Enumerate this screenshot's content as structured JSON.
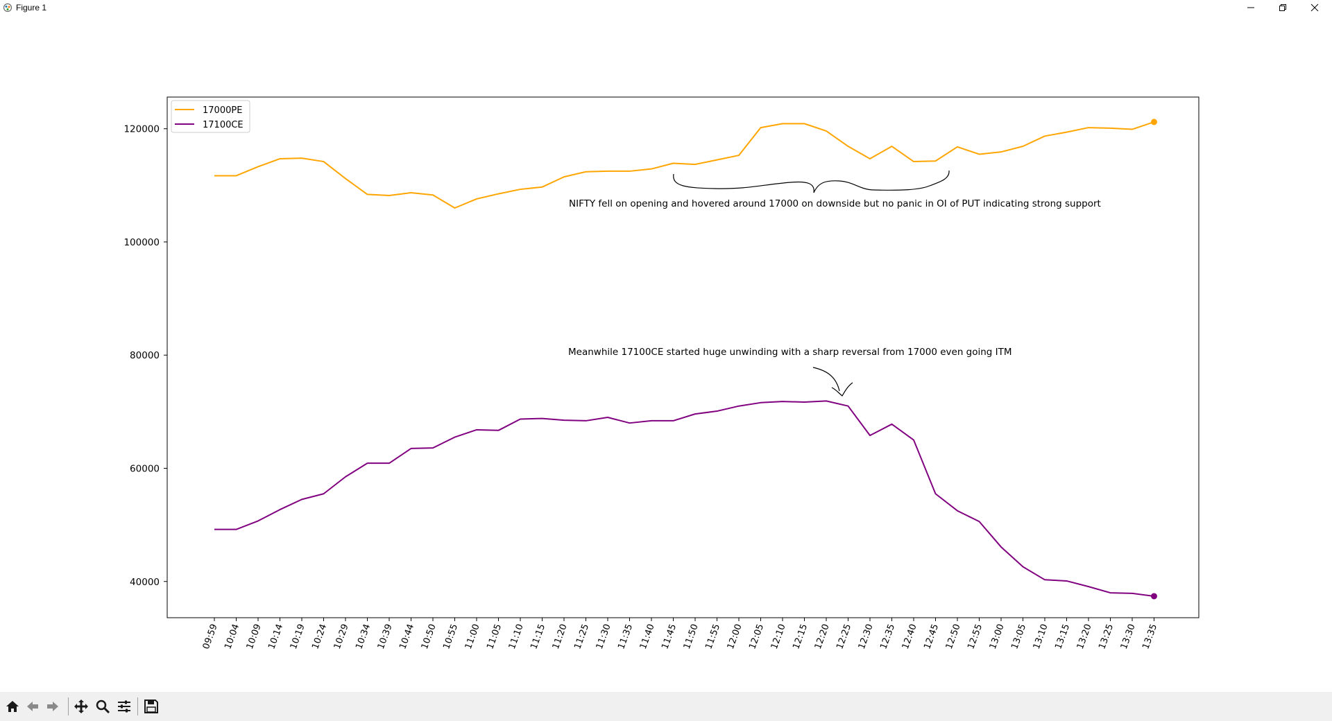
{
  "window": {
    "title": "Figure 1",
    "icons": [
      "app-icon",
      "minimize-icon",
      "maximize-icon",
      "close-icon"
    ]
  },
  "toolbar": {
    "buttons": [
      {
        "name": "home-button",
        "icon": "home-icon"
      },
      {
        "name": "back-button",
        "icon": "arrow-left-icon"
      },
      {
        "name": "forward-button",
        "icon": "arrow-right-icon"
      },
      {
        "name": "pan-button",
        "icon": "move-icon"
      },
      {
        "name": "zoom-button",
        "icon": "magnifier-icon"
      },
      {
        "name": "configure-subplots-button",
        "icon": "sliders-icon"
      },
      {
        "name": "save-button",
        "icon": "floppy-disk-icon"
      }
    ]
  },
  "chart_data": {
    "type": "line",
    "title": "",
    "xlabel": "",
    "ylabel": "",
    "categories": [
      "09:59",
      "10:04",
      "10:09",
      "10:14",
      "10:19",
      "10:24",
      "10:29",
      "10:34",
      "10:39",
      "10:44",
      "10:50",
      "10:55",
      "11:00",
      "11:05",
      "11:10",
      "11:15",
      "11:20",
      "11:25",
      "11:30",
      "11:35",
      "11:40",
      "11:45",
      "11:50",
      "11:55",
      "12:00",
      "12:05",
      "12:10",
      "12:15",
      "12:20",
      "12:25",
      "12:30",
      "12:35",
      "12:40",
      "12:45",
      "12:50",
      "12:55",
      "13:00",
      "13:05",
      "13:10",
      "13:15",
      "13:20",
      "13:25",
      "13:30",
      "13:35"
    ],
    "yticks": [
      40000,
      60000,
      80000,
      100000,
      120000
    ],
    "ylim": [
      33600,
      125600
    ],
    "legend_position": "top-left",
    "series": [
      {
        "name": "17000PE",
        "color": "#FFA500",
        "values": [
          111700,
          111700,
          113300,
          114700,
          114800,
          114200,
          111200,
          108400,
          108200,
          108700,
          108300,
          106000,
          107600,
          108500,
          109300,
          109700,
          111500,
          112400,
          112500,
          112500,
          112900,
          113900,
          113700,
          114500,
          115300,
          120200,
          120900,
          120900,
          119600,
          116900,
          114700,
          116900,
          114200,
          114300,
          116800,
          115500,
          115900,
          116900,
          118700,
          119400,
          120200,
          120100,
          119900,
          121200
        ]
      },
      {
        "name": "17100CE",
        "color": "#800080",
        "values": [
          49200,
          49200,
          50700,
          52700,
          54500,
          55500,
          58500,
          60900,
          60900,
          63500,
          63600,
          65500,
          66800,
          66700,
          68700,
          68800,
          68500,
          68400,
          69000,
          68000,
          68400,
          68400,
          69600,
          70100,
          71000,
          71600,
          71800,
          71700,
          71900,
          71000,
          65800,
          67800,
          65000,
          55500,
          52500,
          50600,
          46100,
          42600,
          40300,
          40100,
          39100,
          38000,
          37900,
          37400
        ]
      }
    ],
    "annotations": [
      "NIFTY fell on opening and hovered around 17000 on downside but no panic in OI of PUT indicating strong support",
      "Meanwhile 17100CE started huge unwinding with a sharp reversal from 17000 even going ITM"
    ]
  }
}
